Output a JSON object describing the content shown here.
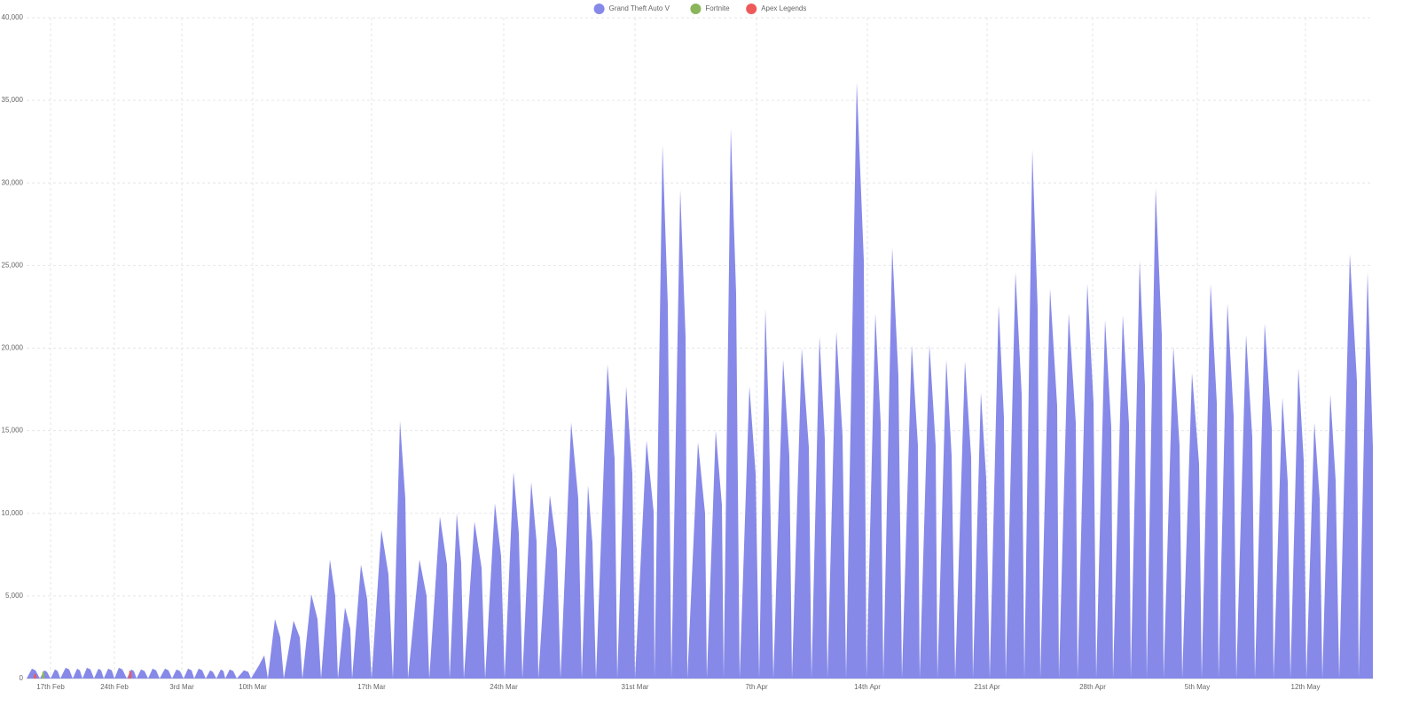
{
  "chart_data": {
    "type": "area",
    "xlim": [
      0,
      1518
    ],
    "xticks": [
      {
        "value": 27,
        "label": "17th Feb"
      },
      {
        "value": 99,
        "label": "24th Feb"
      },
      {
        "value": 175,
        "label": "3rd Mar"
      },
      {
        "value": 255,
        "label": "10th Mar"
      },
      {
        "value": 389,
        "label": "17th Mar"
      },
      {
        "value": 538,
        "label": "24th Mar"
      },
      {
        "value": 686,
        "label": "31st Mar"
      },
      {
        "value": 823,
        "label": "7th Apr"
      },
      {
        "value": 948,
        "label": "14th Apr"
      },
      {
        "value": 1083,
        "label": "21st Apr"
      },
      {
        "value": 1202,
        "label": "28th Apr"
      },
      {
        "value": 1320,
        "label": "5th May"
      },
      {
        "value": 1442,
        "label": "12th May"
      }
    ],
    "ylim": [
      0,
      40000
    ],
    "yticks": [
      0,
      {
        "value": 5000,
        "label": "5,000"
      },
      {
        "value": 10000,
        "label": "10,000"
      },
      {
        "value": 15000,
        "label": "15,000"
      },
      {
        "value": 20000,
        "label": "20,000"
      },
      {
        "value": 25000,
        "label": "25,000"
      },
      {
        "value": 30000,
        "label": "30,000"
      },
      {
        "value": 35000,
        "label": "35,000"
      },
      {
        "value": 40000,
        "label": "40,000"
      }
    ],
    "grid": true,
    "legend": "top",
    "series": [
      {
        "name": "Grand Theft Auto V",
        "color": "#8689e8",
        "x": [
          0,
          6,
          10,
          15,
          20,
          23,
          27,
          32,
          35,
          38,
          44,
          48,
          52,
          57,
          60,
          63,
          68,
          72,
          76,
          81,
          84,
          87,
          92,
          96,
          99,
          104,
          108,
          113,
          118,
          121,
          124,
          129,
          133,
          137,
          142,
          146,
          150,
          156,
          160,
          164,
          169,
          173,
          177,
          182,
          186,
          189,
          194,
          198,
          202,
          207,
          210,
          214,
          219,
          222,
          224,
          229,
          233,
          237,
          245,
          250,
          253,
          262,
          268,
          272,
          280,
          286,
          290,
          301,
          308,
          311,
          321,
          328,
          332,
          342,
          348,
          351,
          359,
          365,
          367,
          377,
          384,
          389,
          400,
          408,
          413,
          421,
          427,
          430,
          443,
          451,
          454,
          466,
          474,
          477,
          485,
          490,
          493,
          505,
          513,
          517,
          528,
          535,
          539,
          549,
          555,
          559,
          569,
          575,
          577,
          590,
          598,
          602,
          614,
          622,
          626,
          633,
          638,
          642,
          655,
          663,
          666,
          676,
          683,
          686,
          699,
          707,
          708,
          717,
          723,
          727,
          737,
          743,
          745,
          757,
          765,
          767,
          777,
          784,
          786,
          794,
          800,
          804,
          815,
          822,
          826,
          833,
          837,
          842,
          853,
          860,
          863,
          874,
          882,
          885,
          894,
          900,
          903,
          913,
          920,
          924,
          936,
          944,
          947,
          957,
          963,
          966,
          976,
          983,
          987,
          998,
          1005,
          1007,
          1018,
          1025,
          1027,
          1037,
          1043,
          1047,
          1058,
          1065,
          1067,
          1076,
          1082,
          1086,
          1096,
          1102,
          1104,
          1115,
          1122,
          1125,
          1134,
          1140,
          1143,
          1154,
          1162,
          1164,
          1175,
          1183,
          1185,
          1196,
          1203,
          1206,
          1216,
          1223,
          1225,
          1236,
          1243,
          1245,
          1255,
          1261,
          1263,
          1273,
          1280,
          1282,
          1293,
          1300,
          1303,
          1314,
          1322,
          1325,
          1335,
          1342,
          1344,
          1354,
          1361,
          1364,
          1375,
          1382,
          1385,
          1396,
          1404,
          1406,
          1416,
          1422,
          1425,
          1434,
          1440,
          1443,
          1452,
          1458,
          1461,
          1470,
          1476,
          1480,
          1492,
          1500,
          1502,
          1512,
          1518
        ],
        "values": [
          0,
          600,
          500,
          0,
          500,
          400,
          0,
          550,
          450,
          0,
          650,
          550,
          0,
          600,
          500,
          0,
          650,
          550,
          0,
          600,
          500,
          0,
          600,
          500,
          0,
          650,
          550,
          0,
          550,
          450,
          0,
          550,
          450,
          0,
          600,
          500,
          0,
          600,
          500,
          0,
          550,
          450,
          0,
          600,
          500,
          0,
          600,
          500,
          0,
          500,
          400,
          0,
          550,
          450,
          0,
          550,
          450,
          0,
          500,
          400,
          0,
          800,
          1400,
          0,
          3600,
          2500,
          0,
          3500,
          2500,
          0,
          5100,
          3600,
          0,
          7200,
          5000,
          0,
          4300,
          3000,
          0,
          6900,
          4800,
          0,
          9000,
          6300,
          0,
          15600,
          10900,
          0,
          7200,
          5000,
          0,
          9800,
          6900,
          0,
          10000,
          7000,
          0,
          9500,
          6700,
          0,
          10600,
          7400,
          0,
          12500,
          8800,
          0,
          11900,
          8300,
          0,
          11100,
          7800,
          0,
          15500,
          10900,
          0,
          11700,
          8200,
          0,
          19000,
          13300,
          0,
          17700,
          12400,
          0,
          14400,
          10100,
          0,
          32300,
          22600,
          0,
          29600,
          20700,
          0,
          14300,
          10000,
          0,
          15000,
          10500,
          0,
          33300,
          23300,
          0,
          17700,
          12400,
          0,
          22400,
          15700,
          0,
          19300,
          13500,
          0,
          20000,
          14000,
          0,
          20700,
          14500,
          0,
          21000,
          14700,
          0,
          36100,
          25300,
          0,
          22100,
          15500,
          0,
          26100,
          18300,
          0,
          20200,
          14100,
          0,
          20200,
          14100,
          0,
          19300,
          13500,
          0,
          19200,
          13400,
          0,
          17300,
          12100,
          0,
          22600,
          15800,
          0,
          24600,
          17200,
          0,
          32000,
          22400,
          0,
          23600,
          16500,
          0,
          22100,
          15500,
          0,
          23900,
          16700,
          0,
          21700,
          15200,
          0,
          22000,
          15400,
          0,
          25300,
          17700,
          0,
          29700,
          20800,
          0,
          20100,
          14100,
          0,
          18500,
          13000,
          0,
          23900,
          16700,
          0,
          22700,
          15900,
          0,
          20800,
          14600,
          0,
          21500,
          15100,
          0,
          17000,
          11900,
          0,
          18800,
          13200,
          0,
          15500,
          10900,
          0,
          17200,
          12000,
          0,
          25700,
          18000,
          0,
          24600,
          14000
        ]
      },
      {
        "name": "Fortnite",
        "color": "#8bb55a",
        "x": [
          17,
          18,
          20
        ],
        "values": [
          0,
          450,
          350
        ]
      },
      {
        "name": "Apex Legends",
        "color": "#ee5a5a",
        "x": [
          8,
          9,
          11,
          12,
          115,
          116,
          118
        ],
        "values": [
          0,
          300,
          250,
          null,
          0,
          500,
          400
        ]
      }
    ]
  }
}
